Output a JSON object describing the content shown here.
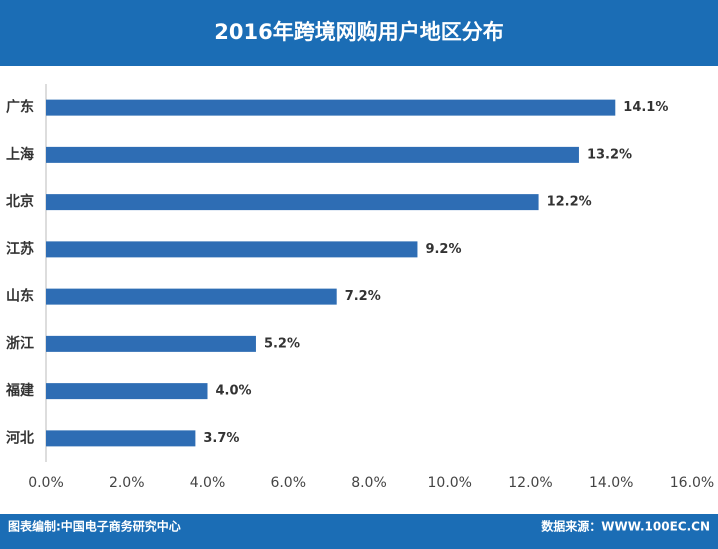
{
  "chart_data": {
    "type": "bar",
    "orientation": "horizontal",
    "title": "2016年跨境网购用户地区分布",
    "categories": [
      "广东",
      "上海",
      "北京",
      "江苏",
      "山东",
      "浙江",
      "福建",
      "河北"
    ],
    "values": [
      14.1,
      13.2,
      12.2,
      9.2,
      7.2,
      5.2,
      4.0,
      3.7
    ],
    "value_labels": [
      "14.1%",
      "13.2%",
      "12.2%",
      "9.2%",
      "7.2%",
      "5.2%",
      "4.0%",
      "3.7%"
    ],
    "color": "#2e6db4",
    "xlim": [
      0,
      16
    ],
    "xticks": [
      {
        "value": 0,
        "label": "0.0%"
      },
      {
        "value": 2,
        "label": "2.0%"
      },
      {
        "value": 4,
        "label": "4.0%"
      },
      {
        "value": 6,
        "label": "6.0%"
      },
      {
        "value": 8,
        "label": "8.0%"
      },
      {
        "value": 10,
        "label": "10.0%"
      },
      {
        "value": 12,
        "label": "12.0%"
      },
      {
        "value": 14,
        "label": "14.0%"
      },
      {
        "value": 16,
        "label": "16.0%"
      }
    ],
    "grid": false
  },
  "footer": {
    "left": "图表编制:中国电子商务研究中心",
    "right": "数据来源：WWW.100EC.CN"
  }
}
